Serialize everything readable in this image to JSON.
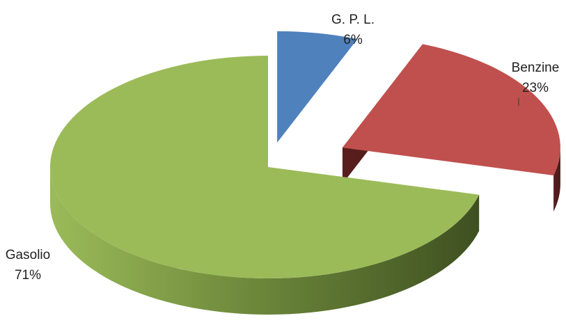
{
  "chart_data": {
    "type": "pie",
    "style": "3d-exploded",
    "title": "",
    "slices": [
      {
        "label": "G. P. L.",
        "percent_label": "6%",
        "value": 6,
        "color": "#4F81BD"
      },
      {
        "label": "Benzine",
        "percent_label": "23%",
        "value": 23,
        "color": "#C0504D"
      },
      {
        "label": "Gasolio",
        "percent_label": "71%",
        "value": 71,
        "color": "#9BBB59"
      }
    ],
    "legend": "none",
    "label_position": "outside"
  }
}
